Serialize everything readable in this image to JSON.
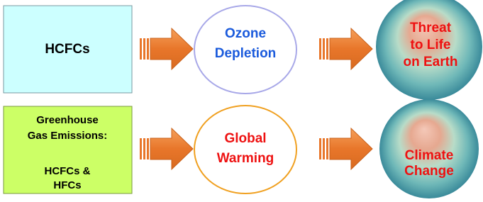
{
  "rows": [
    {
      "source": {
        "lines": [
          "HCFCs"
        ]
      },
      "effect": {
        "lines": [
          "Ozone",
          "Depletion"
        ]
      },
      "outcome": {
        "lines": [
          "Threat",
          "to Life",
          "on Earth"
        ]
      }
    },
    {
      "source": {
        "heading": [
          "Greenhouse",
          "Gas Emissions:"
        ],
        "lines": [
          "HCFCs &",
          "HFCs"
        ]
      },
      "effect": {
        "lines": [
          "Global",
          "Warming"
        ]
      },
      "outcome": {
        "lines": [
          "Climate",
          "Change"
        ]
      }
    }
  ]
}
